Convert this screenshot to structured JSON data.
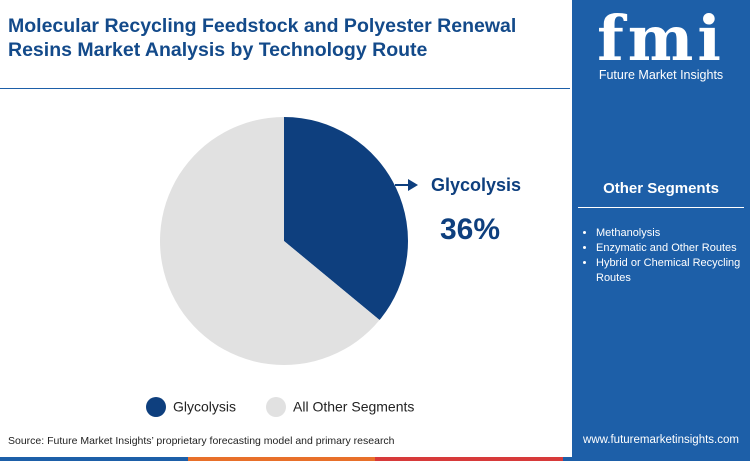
{
  "chart_data": {
    "type": "pie",
    "title": "Molecular Recycling Feedstock and Polyester Renewal Resins Market Analysis by Technology Route",
    "categories": [
      "Glycolysis",
      "All Other Segments"
    ],
    "values": [
      36,
      64
    ],
    "value_labels": [
      "36%",
      null
    ],
    "colors": [
      "#0e3f7e",
      "#e1e1e1"
    ]
  },
  "logo": {
    "mark": "fmi",
    "name": "Future Market Insights"
  },
  "sidebar": {
    "heading": "Other Segments",
    "items": [
      "Methanolysis",
      "Enzymatic and Other Routes",
      "Hybrid or Chemical Recycling Routes"
    ]
  },
  "source": "Source: Future Market Insights’ proprietary forecasting model and primary research",
  "website": "www.futuremarketinsights.com"
}
